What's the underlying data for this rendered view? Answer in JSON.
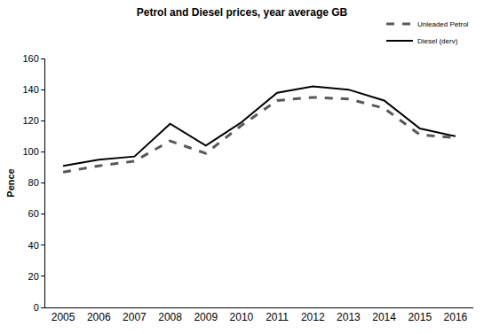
{
  "chart_data": {
    "type": "line",
    "title": "Petrol and Diesel prices, year average GB",
    "ylabel": "Pence",
    "categories": [
      "2005",
      "2006",
      "2007",
      "2008",
      "2009",
      "2010",
      "2011",
      "2012",
      "2013",
      "2014",
      "2015",
      "2016"
    ],
    "series": [
      {
        "name": "Unleaded Petrol",
        "color": "#595959",
        "line_style": "dashed",
        "values": [
          87,
          91,
          94,
          107,
          99,
          117,
          133,
          135,
          134,
          128,
          111,
          109
        ]
      },
      {
        "name": "Diesel (derv)",
        "color": "#000000",
        "line_style": "solid",
        "values": [
          91,
          95,
          97,
          118,
          104,
          119,
          138,
          142,
          140,
          133,
          115,
          110
        ]
      }
    ],
    "ylim": [
      0,
      160
    ],
    "yticks": [
      0,
      20,
      40,
      60,
      80,
      100,
      120,
      140,
      160
    ],
    "grid": false,
    "legend": "upper right"
  }
}
